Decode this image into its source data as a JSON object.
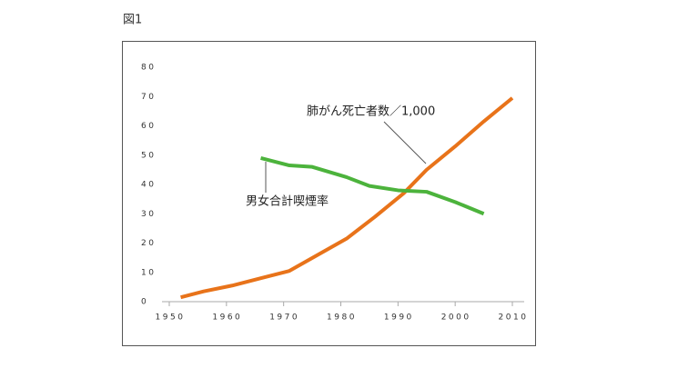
{
  "caption": "図1",
  "chart_data": {
    "type": "line",
    "xlim": [
      1950,
      2010
    ],
    "xticks": [
      1950,
      1960,
      1970,
      1980,
      1990,
      2000,
      2010
    ],
    "ylim": [
      0,
      80
    ],
    "yticks": [
      0,
      10,
      20,
      30,
      40,
      50,
      60,
      70,
      80
    ],
    "grid": false,
    "series": [
      {
        "name": "肺がん死亡者数／1,000",
        "color": "#e8731a",
        "x": [
          1952,
          1956,
          1961,
          1966,
          1971,
          1976,
          1981,
          1986,
          1991,
          1995,
          2000,
          2005,
          2010
        ],
        "values": [
          1.5,
          3.5,
          5.5,
          8,
          10.5,
          16,
          21.5,
          29,
          37,
          45,
          53,
          61.5,
          69.5
        ]
      },
      {
        "name": "男女合計喫煙率",
        "color": "#4cb33c",
        "x": [
          1966,
          1971,
          1975,
          1981,
          1985,
          1990,
          1995,
          2000,
          2005
        ],
        "values": [
          49,
          46.5,
          46,
          42.5,
          39.5,
          38,
          37.5,
          34,
          30
        ]
      }
    ]
  }
}
